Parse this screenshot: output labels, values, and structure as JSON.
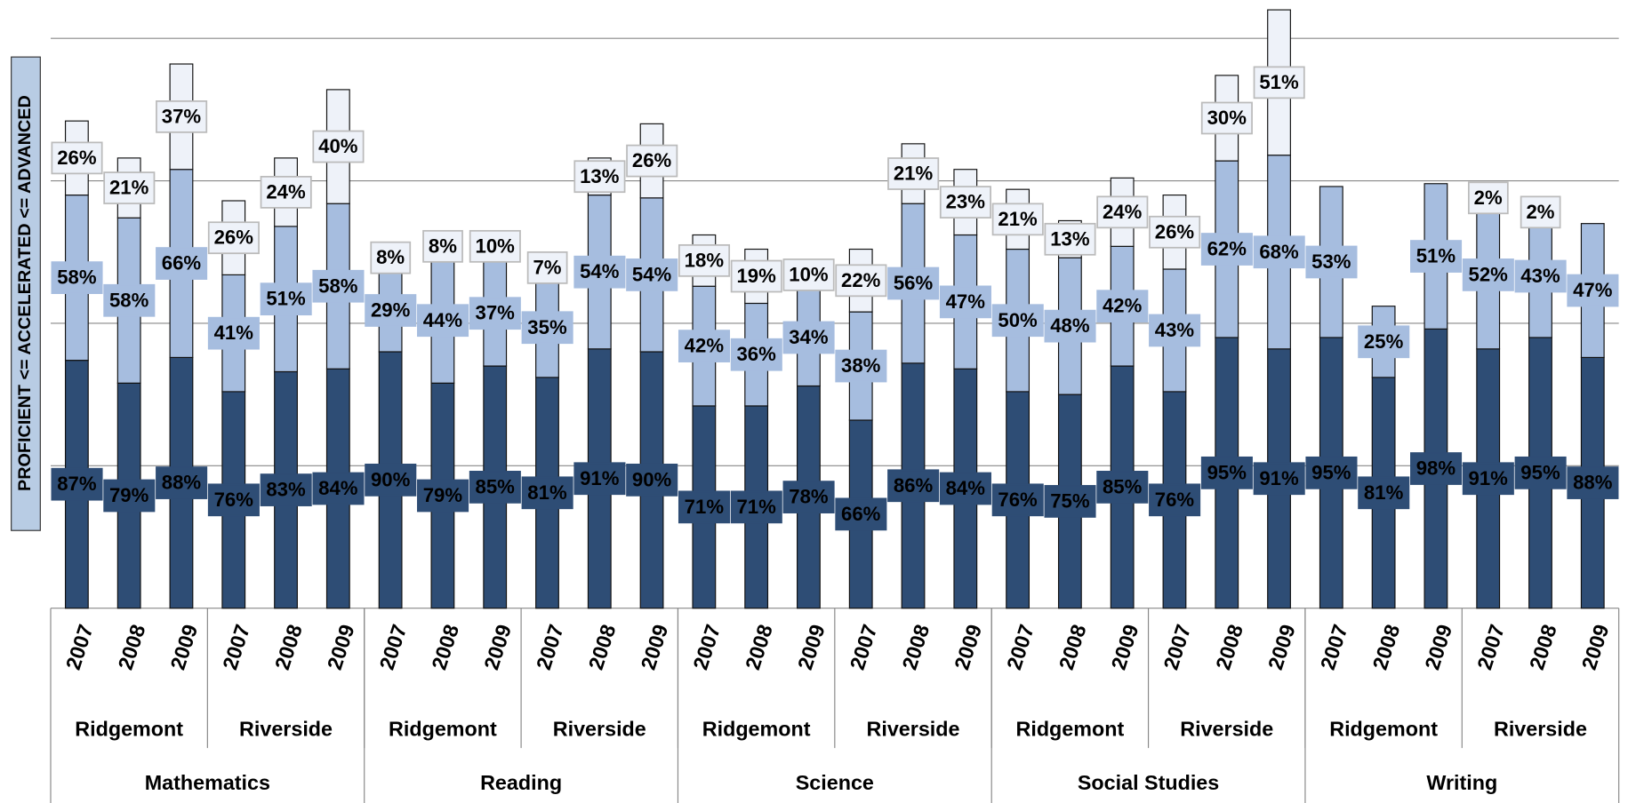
{
  "chart_data": {
    "type": "stacked-bar",
    "y_label": "PROFICIENT <= ACCELERATED <= ADVANCED",
    "categories": [
      "2007",
      "2008",
      "2009",
      "2007",
      "2008",
      "2009",
      "2007",
      "2008",
      "2009",
      "2007",
      "2008",
      "2009",
      "2007",
      "2008",
      "2009",
      "2007",
      "2008",
      "2009",
      "2007",
      "2008",
      "2009",
      "2007",
      "2008",
      "2009",
      "2007",
      "2008",
      "2009",
      "2007",
      "2008",
      "2009"
    ],
    "schools": [
      "Ridgemont",
      "Riverside",
      "Ridgemont",
      "Riverside",
      "Ridgemont",
      "Riverside",
      "Ridgemont",
      "Riverside",
      "Ridgemont",
      "Riverside"
    ],
    "subjects": [
      "Mathematics",
      "Reading",
      "Science",
      "Social Studies",
      "Writing"
    ],
    "ylim": [
      0,
      200
    ],
    "yticks": [
      0,
      50,
      100,
      150,
      200
    ],
    "grid": true,
    "series": [
      {
        "color": "#2e4d75",
        "label_color": "#ffffff",
        "values": [
          87,
          79,
          88,
          76,
          83,
          84,
          90,
          79,
          85,
          81,
          91,
          90,
          71,
          71,
          78,
          66,
          86,
          84,
          76,
          75,
          85,
          76,
          95,
          91,
          95,
          81,
          98,
          91,
          95,
          88
        ],
        "value_labels": [
          "87%",
          "79%",
          "88%",
          "76%",
          "83%",
          "84%",
          "90%",
          "79%",
          "85%",
          "81%",
          "91%",
          "90%",
          "71%",
          "71%",
          "78%",
          "66%",
          "86%",
          "84%",
          "76%",
          "75%",
          "85%",
          "76%",
          "95%",
          "91%",
          "95%",
          "81%",
          "98%",
          "91%",
          "95%",
          "88%"
        ]
      },
      {
        "color": "#a6bddf",
        "label_color": "#000000",
        "values": [
          58,
          58,
          66,
          41,
          51,
          58,
          29,
          44,
          37,
          35,
          54,
          54,
          42,
          36,
          34,
          38,
          56,
          47,
          50,
          48,
          42,
          43,
          62,
          68,
          53,
          25,
          51,
          52,
          43,
          47
        ],
        "value_labels": [
          "58%",
          "58%",
          "66%",
          "41%",
          "51%",
          "58%",
          "29%",
          "44%",
          "37%",
          "35%",
          "54%",
          "54%",
          "42%",
          "36%",
          "34%",
          "38%",
          "56%",
          "47%",
          "50%",
          "48%",
          "42%",
          "43%",
          "62%",
          "68%",
          "53%",
          "25%",
          "51%",
          "52%",
          "43%",
          "47%"
        ]
      },
      {
        "color": "#eef2f9",
        "label_color": "#000000",
        "values": [
          26,
          21,
          37,
          26,
          24,
          40,
          8,
          8,
          10,
          7,
          13,
          26,
          18,
          19,
          10,
          22,
          21,
          23,
          21,
          13,
          24,
          26,
          30,
          51,
          null,
          null,
          null,
          2,
          2,
          null
        ],
        "value_labels": [
          "26%",
          "21%",
          "37%",
          "26%",
          "24%",
          "40%",
          "8%",
          "8%",
          "10%",
          "7%",
          "13%",
          "26%",
          "18%",
          "19%",
          "10%",
          "22%",
          "21%",
          "23%",
          "21%",
          "13%",
          "24%",
          "26%",
          "30%",
          "51%",
          null,
          null,
          null,
          "2%",
          "2%",
          null
        ]
      }
    ]
  }
}
